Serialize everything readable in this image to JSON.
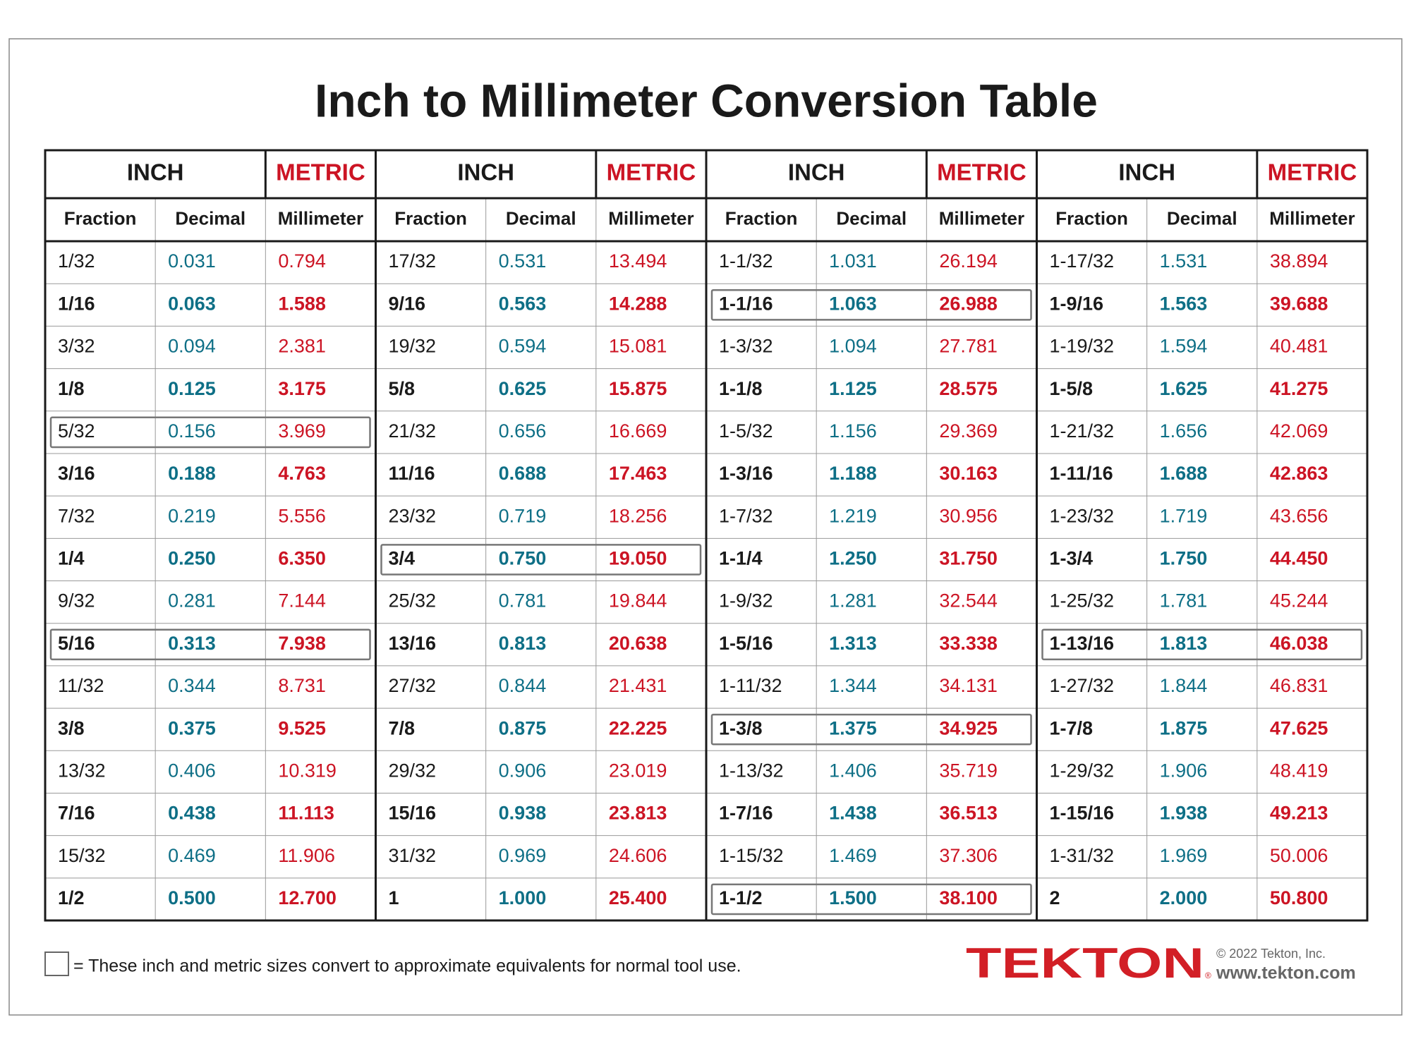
{
  "title": "Inch to Millimeter Conversion Table",
  "table": {
    "groups": [
      {
        "inch": "INCH",
        "metric": "METRIC",
        "columns": [
          "Fraction",
          "Decimal",
          "Millimeter"
        ],
        "boxed_rows": [
          4,
          9
        ],
        "rows": [
          [
            "1/32",
            "0.031",
            "0.794"
          ],
          [
            "1/16",
            "0.063",
            "1.588"
          ],
          [
            "3/32",
            "0.094",
            "2.381"
          ],
          [
            "1/8",
            "0.125",
            "3.175"
          ],
          [
            "5/32",
            "0.156",
            "3.969"
          ],
          [
            "3/16",
            "0.188",
            "4.763"
          ],
          [
            "7/32",
            "0.219",
            "5.556"
          ],
          [
            "1/4",
            "0.250",
            "6.350"
          ],
          [
            "9/32",
            "0.281",
            "7.144"
          ],
          [
            "5/16",
            "0.313",
            "7.938"
          ],
          [
            "11/32",
            "0.344",
            "8.731"
          ],
          [
            "3/8",
            "0.375",
            "9.525"
          ],
          [
            "13/32",
            "0.406",
            "10.319"
          ],
          [
            "7/16",
            "0.438",
            "11.113"
          ],
          [
            "15/32",
            "0.469",
            "11.906"
          ],
          [
            "1/2",
            "0.500",
            "12.700"
          ]
        ]
      },
      {
        "inch": "INCH",
        "metric": "METRIC",
        "columns": [
          "Fraction",
          "Decimal",
          "Millimeter"
        ],
        "boxed_rows": [
          7
        ],
        "rows": [
          [
            "17/32",
            "0.531",
            "13.494"
          ],
          [
            "9/16",
            "0.563",
            "14.288"
          ],
          [
            "19/32",
            "0.594",
            "15.081"
          ],
          [
            "5/8",
            "0.625",
            "15.875"
          ],
          [
            "21/32",
            "0.656",
            "16.669"
          ],
          [
            "11/16",
            "0.688",
            "17.463"
          ],
          [
            "23/32",
            "0.719",
            "18.256"
          ],
          [
            "3/4",
            "0.750",
            "19.050"
          ],
          [
            "25/32",
            "0.781",
            "19.844"
          ],
          [
            "13/16",
            "0.813",
            "20.638"
          ],
          [
            "27/32",
            "0.844",
            "21.431"
          ],
          [
            "7/8",
            "0.875",
            "22.225"
          ],
          [
            "29/32",
            "0.906",
            "23.019"
          ],
          [
            "15/16",
            "0.938",
            "23.813"
          ],
          [
            "31/32",
            "0.969",
            "24.606"
          ],
          [
            "1",
            "1.000",
            "25.400"
          ]
        ]
      },
      {
        "inch": "INCH",
        "metric": "METRIC",
        "columns": [
          "Fraction",
          "Decimal",
          "Millimeter"
        ],
        "boxed_rows": [
          1,
          11,
          15
        ],
        "rows": [
          [
            "1-1/32",
            "1.031",
            "26.194"
          ],
          [
            "1-1/16",
            "1.063",
            "26.988"
          ],
          [
            "1-3/32",
            "1.094",
            "27.781"
          ],
          [
            "1-1/8",
            "1.125",
            "28.575"
          ],
          [
            "1-5/32",
            "1.156",
            "29.369"
          ],
          [
            "1-3/16",
            "1.188",
            "30.163"
          ],
          [
            "1-7/32",
            "1.219",
            "30.956"
          ],
          [
            "1-1/4",
            "1.250",
            "31.750"
          ],
          [
            "1-9/32",
            "1.281",
            "32.544"
          ],
          [
            "1-5/16",
            "1.313",
            "33.338"
          ],
          [
            "1-11/32",
            "1.344",
            "34.131"
          ],
          [
            "1-3/8",
            "1.375",
            "34.925"
          ],
          [
            "1-13/32",
            "1.406",
            "35.719"
          ],
          [
            "1-7/16",
            "1.438",
            "36.513"
          ],
          [
            "1-15/32",
            "1.469",
            "37.306"
          ],
          [
            "1-1/2",
            "1.500",
            "38.100"
          ]
        ]
      },
      {
        "inch": "INCH",
        "metric": "METRIC",
        "columns": [
          "Fraction",
          "Decimal",
          "Millimeter"
        ],
        "boxed_rows": [
          9
        ],
        "rows": [
          [
            "1-17/32",
            "1.531",
            "38.894"
          ],
          [
            "1-9/16",
            "1.563",
            "39.688"
          ],
          [
            "1-19/32",
            "1.594",
            "40.481"
          ],
          [
            "1-5/8",
            "1.625",
            "41.275"
          ],
          [
            "1-21/32",
            "1.656",
            "42.069"
          ],
          [
            "1-11/16",
            "1.688",
            "42.863"
          ],
          [
            "1-23/32",
            "1.719",
            "43.656"
          ],
          [
            "1-3/4",
            "1.750",
            "44.450"
          ],
          [
            "1-25/32",
            "1.781",
            "45.244"
          ],
          [
            "1-13/16",
            "1.813",
            "46.038"
          ],
          [
            "1-27/32",
            "1.844",
            "46.831"
          ],
          [
            "1-7/8",
            "1.875",
            "47.625"
          ],
          [
            "1-29/32",
            "1.906",
            "48.419"
          ],
          [
            "1-15/16",
            "1.938",
            "49.213"
          ],
          [
            "1-31/32",
            "1.969",
            "50.006"
          ],
          [
            "2",
            "2.000",
            "50.800"
          ]
        ]
      }
    ]
  },
  "footer": {
    "legend": "= These inch and metric sizes convert to approximate equivalents for normal tool use.",
    "logo": "TEKTON",
    "registered": "®",
    "copyright": "© 2022 Tekton, Inc.",
    "url": "www.tekton.com"
  }
}
